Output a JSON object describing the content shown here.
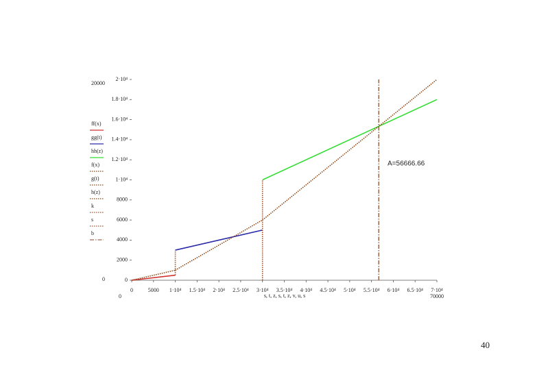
{
  "page_number": "40",
  "chart_data": {
    "type": "line",
    "x_label": "s, t, z, s, t, z, v, u, s",
    "annotation": "A=56666.66",
    "xlim": [
      0,
      70000
    ],
    "ylim": [
      0,
      20000
    ],
    "xticks": [
      0,
      5000,
      {
        "value": 10000,
        "label": "1·10⁴"
      },
      {
        "value": 15000,
        "label": "1.5·10⁴"
      },
      {
        "value": 20000,
        "label": "2·10⁴"
      },
      {
        "value": 25000,
        "label": "2.5·10⁴"
      },
      {
        "value": 30000,
        "label": "3·10⁴"
      },
      {
        "value": 35000,
        "label": "3.5·10⁴"
      },
      {
        "value": 40000,
        "label": "4·10⁴"
      },
      {
        "value": 45000,
        "label": "4.5·10⁴"
      },
      {
        "value": 50000,
        "label": "5·10⁴"
      },
      {
        "value": 55000,
        "label": "5.5·10⁴"
      },
      {
        "value": 60000,
        "label": "6·10⁴"
      },
      {
        "value": 65000,
        "label": "6.5·10⁴"
      },
      {
        "value": 70000,
        "label": "7·10⁴"
      }
    ],
    "yticks": [
      0,
      2000,
      4000,
      6000,
      8000,
      {
        "value": 10000,
        "label": "1·10⁴"
      },
      {
        "value": 12000,
        "label": "1.2·10⁴"
      },
      {
        "value": 14000,
        "label": "1.4·10⁴"
      },
      {
        "value": 16000,
        "label": "1.6·10⁴"
      },
      {
        "value": 18000,
        "label": "1.8·10⁴"
      },
      {
        "value": 20000,
        "label": "2·10⁴"
      }
    ],
    "series": [
      {
        "name": "ff(x)",
        "color": "#d03030",
        "dash": "solid",
        "x": [
          0,
          10000
        ],
        "values": [
          0,
          500
        ]
      },
      {
        "name": "gg(t)",
        "color": "#2a2aa8",
        "dash": "solid",
        "x": [
          10000,
          30000
        ],
        "values": [
          3000,
          5000
        ]
      },
      {
        "name": "hh(z)",
        "color": "#33dd33",
        "dash": "solid",
        "x": [
          30000,
          70000
        ],
        "values": [
          10000,
          18000
        ]
      },
      {
        "name": "f(x)",
        "color": "#8b4513",
        "dash": "dotted",
        "x": [
          0,
          10000
        ],
        "values": [
          0,
          1000
        ]
      },
      {
        "name": "g(t)",
        "color": "#8b4513",
        "dash": "dotted",
        "x": [
          10000,
          30000
        ],
        "values": [
          1000,
          6000
        ]
      },
      {
        "name": "h(z)",
        "color": "#8b4513",
        "dash": "dotted",
        "x": [
          30000,
          70000
        ],
        "values": [
          6000,
          20000
        ]
      },
      {
        "name": "k",
        "color": "#a0522d",
        "dash": "dotted",
        "x": [
          10000,
          10000
        ],
        "values": [
          500,
          3000
        ]
      },
      {
        "name": "s",
        "color": "#a0522d",
        "dash": "dotted",
        "x": [
          30000,
          30000
        ],
        "values": [
          0,
          10000
        ]
      },
      {
        "name": "b",
        "color": "#a06a50",
        "dash": "dashdot",
        "x": [
          56666.66,
          56666.66
        ],
        "values": [
          0,
          20000
        ]
      }
    ]
  }
}
